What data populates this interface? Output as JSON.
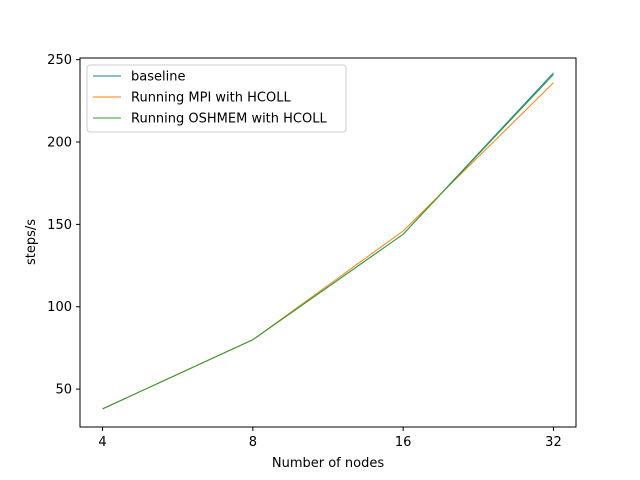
{
  "chart_data": {
    "type": "line",
    "x": [
      4,
      8,
      16,
      32
    ],
    "xscale": "log2",
    "x_tick_labels": [
      "4",
      "8",
      "16",
      "32"
    ],
    "xlabel": "Number of nodes",
    "ylabel": "steps/s",
    "ylim": [
      27,
      251
    ],
    "y_ticks": [
      50,
      100,
      150,
      200,
      250
    ],
    "grid": false,
    "legend_position": "top-left",
    "series": [
      {
        "name": "baseline",
        "color": "#1f77b4",
        "values": [
          38,
          80,
          144,
          242
        ]
      },
      {
        "name": "Running MPI with HCOLL",
        "color": "#ff7f0e",
        "values": [
          38,
          80,
          146,
          236
        ]
      },
      {
        "name": "Running OSHMEM with HCOLL",
        "color": "#2ca02c",
        "values": [
          38,
          80,
          144,
          241
        ]
      }
    ]
  }
}
